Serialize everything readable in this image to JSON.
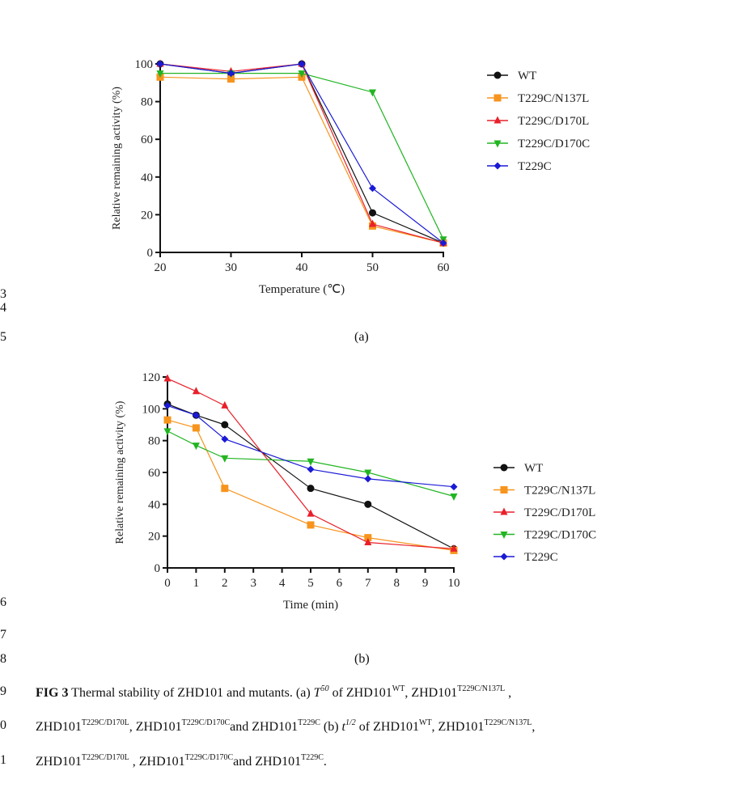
{
  "line_numbers": [
    "3",
    "4",
    "5",
    "6",
    "7",
    "8",
    "9",
    "0",
    "1"
  ],
  "panel_labels": {
    "a": "(a)",
    "b": "(b)"
  },
  "caption": [
    [
      {
        "t": "FIG 3",
        "s": "b"
      },
      {
        "t": "  Thermal stability of ZHD101 and mutants. (a) ",
        "s": ""
      },
      {
        "t": "T",
        "s": "i"
      },
      {
        "t": "50",
        "s": "i sup"
      },
      {
        "t": " of ZHD101",
        "s": ""
      },
      {
        "t": "WT",
        "s": "sup"
      },
      {
        "t": ", ZHD101",
        "s": ""
      },
      {
        "t": "T229C/N137L",
        "s": "sup"
      },
      {
        "t": " ,",
        "s": ""
      }
    ],
    [
      {
        "t": "ZHD101",
        "s": ""
      },
      {
        "t": "T229C/D170L",
        "s": "sup"
      },
      {
        "t": ", ZHD101",
        "s": ""
      },
      {
        "t": "T229C/D170C",
        "s": "sup"
      },
      {
        "t": "and ZHD101",
        "s": ""
      },
      {
        "t": "T229C",
        "s": "sup"
      },
      {
        "t": " (b) ",
        "s": ""
      },
      {
        "t": "t",
        "s": "i"
      },
      {
        "t": "1/2",
        "s": "i sup"
      },
      {
        "t": " of ZHD101",
        "s": ""
      },
      {
        "t": "WT",
        "s": "sup"
      },
      {
        "t": ", ZHD101",
        "s": ""
      },
      {
        "t": "T229C/N137L",
        "s": "sup"
      },
      {
        "t": ",",
        "s": ""
      }
    ],
    [
      {
        "t": "ZHD101",
        "s": ""
      },
      {
        "t": "T229C/D170L",
        "s": "sup"
      },
      {
        "t": " , ZHD101",
        "s": ""
      },
      {
        "t": "T229C/D170C",
        "s": "sup"
      },
      {
        "t": "and ZHD101",
        "s": ""
      },
      {
        "t": "T229C",
        "s": "sup"
      },
      {
        "t": ".",
        "s": ""
      }
    ]
  ],
  "chart_data": [
    {
      "type": "line",
      "xlabel": "Temperature (℃)",
      "ylabel": "Relative remaining activity (%)",
      "x": [
        20,
        30,
        40,
        50,
        60
      ],
      "xticks": [
        20,
        30,
        40,
        50,
        60
      ],
      "yticks": [
        0,
        20,
        40,
        60,
        80,
        100
      ],
      "xlim": [
        20,
        60
      ],
      "ylim": [
        0,
        100
      ],
      "grid": false,
      "legend": "right",
      "series": [
        {
          "name": "WT",
          "marker": "circle",
          "color": "#111111",
          "values": [
            100,
            95,
            100,
            21,
            5
          ]
        },
        {
          "name": "T229C/N137L",
          "marker": "square",
          "color": "#f7941d",
          "values": [
            93,
            92,
            93,
            14,
            5
          ]
        },
        {
          "name": "T229C/D170L",
          "marker": "triangle-up",
          "color": "#e8202a",
          "values": [
            100,
            96,
            100,
            15,
            5
          ]
        },
        {
          "name": "T229C/D170C",
          "marker": "triangle-down",
          "color": "#22b522",
          "values": [
            95,
            95,
            95,
            85,
            7
          ]
        },
        {
          "name": "T229C",
          "marker": "diamond",
          "color": "#1a1ad6",
          "values": [
            100,
            95,
            100,
            34,
            5
          ]
        }
      ]
    },
    {
      "type": "line",
      "xlabel": "Time (min)",
      "ylabel": "Relative remaining activity (%)",
      "x": [
        0,
        1,
        2,
        5,
        7,
        10
      ],
      "xticks": [
        0,
        1,
        2,
        3,
        4,
        5,
        6,
        7,
        8,
        9,
        10
      ],
      "yticks": [
        0,
        20,
        40,
        60,
        80,
        100,
        120
      ],
      "xlim": [
        0,
        10
      ],
      "ylim": [
        0,
        120
      ],
      "grid": false,
      "legend": "right",
      "series": [
        {
          "name": "WT",
          "marker": "circle",
          "color": "#111111",
          "values": [
            103,
            96,
            90,
            50,
            40,
            12
          ]
        },
        {
          "name": "T229C/N137L",
          "marker": "square",
          "color": "#f7941d",
          "values": [
            93,
            88,
            50,
            27,
            19,
            11
          ]
        },
        {
          "name": "T229C/D170L",
          "marker": "triangle-up",
          "color": "#e8202a",
          "values": [
            119,
            111,
            102,
            34,
            16,
            12
          ]
        },
        {
          "name": "T229C/D170C",
          "marker": "triangle-down",
          "color": "#22b522",
          "values": [
            86,
            77,
            69,
            67,
            60,
            45
          ]
        },
        {
          "name": "T229C",
          "marker": "diamond",
          "color": "#1a1ad6",
          "values": [
            102,
            96,
            81,
            62,
            56,
            51
          ]
        }
      ]
    }
  ]
}
